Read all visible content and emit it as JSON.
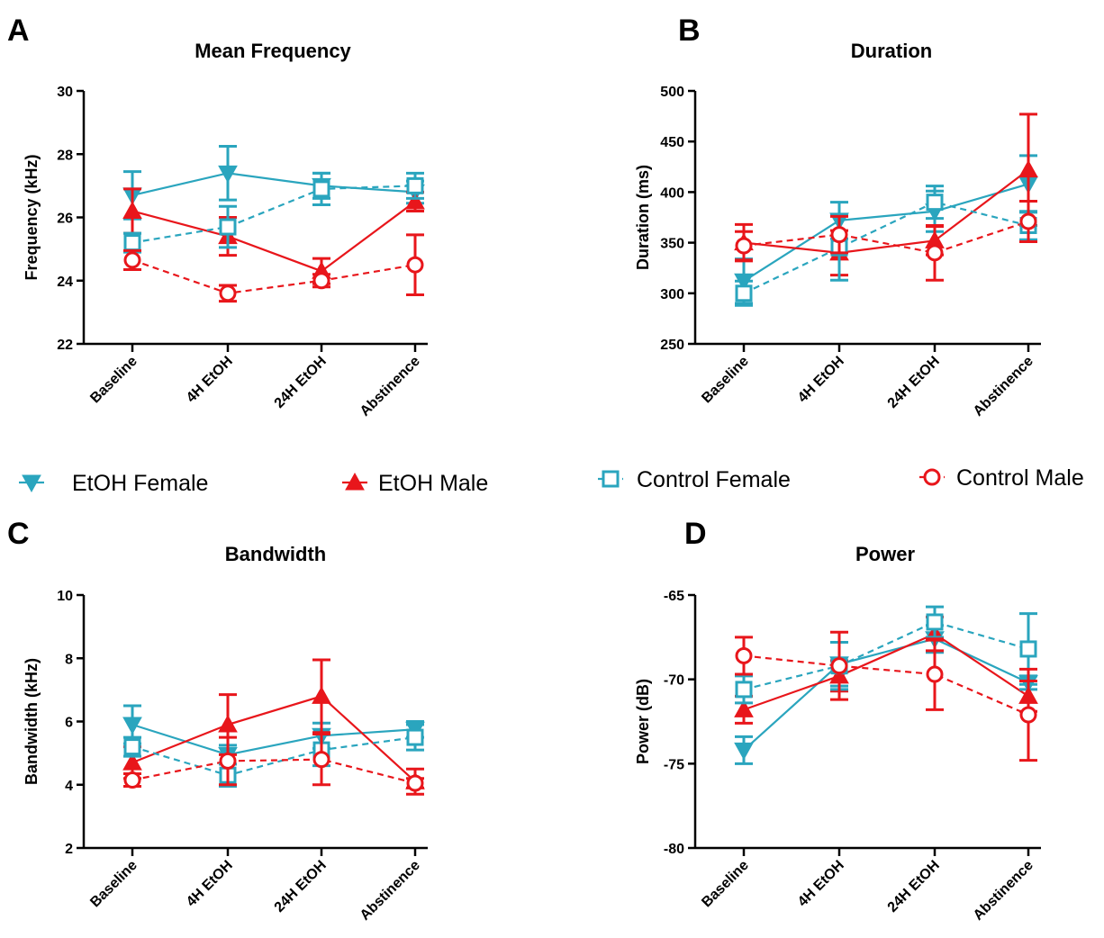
{
  "colors": {
    "female": "#2aa5be",
    "male": "#e8161b",
    "axis": "#000000"
  },
  "legend": [
    {
      "label": "EtOH Female",
      "series": 0
    },
    {
      "label": "EtOH Male",
      "series": 1
    },
    {
      "label": "Control Female",
      "series": 2
    },
    {
      "label": "Control Male",
      "series": 3
    }
  ],
  "chart_data": [
    {
      "panel": "A",
      "type": "line",
      "title": "Mean Frequency",
      "ylabel": "Frequency (kHz)",
      "xlabel": "",
      "categories": [
        "Baseline",
        "4H EtOH",
        "24H EtOH",
        "Abstinence"
      ],
      "ylim": [
        22,
        30
      ],
      "yticks": [
        22,
        24,
        26,
        28,
        30
      ],
      "grid": false,
      "series": [
        {
          "name": "EtOH Female",
          "marker": "triangle-down",
          "fill": "solid",
          "dash": "solid",
          "color": "#2aa5be",
          "values": [
            26.7,
            27.4,
            27.0,
            26.8
          ],
          "errors": [
            0.75,
            0.85,
            0.4,
            0.35
          ]
        },
        {
          "name": "EtOH Male",
          "marker": "triangle-up",
          "fill": "solid",
          "dash": "solid",
          "color": "#e8161b",
          "values": [
            26.2,
            25.4,
            24.3,
            26.5
          ],
          "errors": [
            0.7,
            0.6,
            0.4,
            0.3
          ]
        },
        {
          "name": "Control Female",
          "marker": "square",
          "fill": "open",
          "dash": "dashed",
          "color": "#2aa5be",
          "values": [
            25.2,
            25.7,
            26.9,
            27.0
          ],
          "errors": [
            0.3,
            0.65,
            0.5,
            0.4
          ]
        },
        {
          "name": "Control Male",
          "marker": "circle",
          "fill": "open",
          "dash": "dashed",
          "color": "#e8161b",
          "values": [
            24.65,
            23.6,
            24.0,
            24.5
          ],
          "errors": [
            0.3,
            0.25,
            0.2,
            0.95
          ]
        }
      ]
    },
    {
      "panel": "B",
      "type": "line",
      "title": "Duration",
      "ylabel": "Duration (ms)",
      "xlabel": "",
      "categories": [
        "Baseline",
        "4H EtOH",
        "24H EtOH",
        "Abstinence"
      ],
      "ylim": [
        250,
        500
      ],
      "yticks": [
        250,
        300,
        350,
        400,
        450,
        500
      ],
      "grid": false,
      "series": [
        {
          "name": "EtOH Female",
          "marker": "triangle-down",
          "fill": "solid",
          "dash": "solid",
          "color": "#2aa5be",
          "values": [
            312,
            372,
            381,
            408
          ],
          "errors": [
            22,
            18,
            20,
            28
          ]
        },
        {
          "name": "EtOH Male",
          "marker": "triangle-up",
          "fill": "solid",
          "dash": "solid",
          "color": "#e8161b",
          "values": [
            350,
            340,
            352,
            422
          ],
          "errors": [
            18,
            22,
            14,
            55
          ]
        },
        {
          "name": "Control Female",
          "marker": "square",
          "fill": "open",
          "dash": "dashed",
          "color": "#2aa5be",
          "values": [
            300,
            345,
            390,
            367
          ],
          "errors": [
            12,
            32,
            16,
            14
          ]
        },
        {
          "name": "Control Male",
          "marker": "circle",
          "fill": "open",
          "dash": "dashed",
          "color": "#e8161b",
          "values": [
            347,
            358,
            340,
            371
          ],
          "errors": [
            14,
            18,
            27,
            20
          ]
        }
      ]
    },
    {
      "panel": "C",
      "type": "line",
      "title": "Bandwidth",
      "ylabel": "Bandwidth (kHz)",
      "xlabel": "",
      "categories": [
        "Baseline",
        "4H EtOH",
        "24H EtOH",
        "Abstinence"
      ],
      "ylim": [
        2,
        10
      ],
      "yticks": [
        2,
        4,
        6,
        8,
        10
      ],
      "grid": false,
      "series": [
        {
          "name": "EtOH Female",
          "marker": "triangle-down",
          "fill": "solid",
          "dash": "solid",
          "color": "#2aa5be",
          "values": [
            5.9,
            4.95,
            5.55,
            5.75
          ],
          "errors": [
            0.6,
            0.3,
            0.4,
            0.25
          ]
        },
        {
          "name": "EtOH Male",
          "marker": "triangle-up",
          "fill": "solid",
          "dash": "solid",
          "color": "#e8161b",
          "values": [
            4.7,
            5.9,
            6.8,
            4.1
          ],
          "errors": [
            0.5,
            0.95,
            1.15,
            0.4
          ]
        },
        {
          "name": "Control Female",
          "marker": "square",
          "fill": "open",
          "dash": "dashed",
          "color": "#2aa5be",
          "values": [
            5.2,
            4.3,
            5.1,
            5.5
          ],
          "errors": [
            0.3,
            0.35,
            0.5,
            0.4
          ]
        },
        {
          "name": "Control Male",
          "marker": "circle",
          "fill": "open",
          "dash": "dashed",
          "color": "#e8161b",
          "values": [
            4.15,
            4.75,
            4.8,
            4.05
          ],
          "errors": [
            0.2,
            0.75,
            0.8,
            0.15
          ]
        }
      ]
    },
    {
      "panel": "D",
      "type": "line",
      "title": "Power",
      "ylabel": "Power (dB)",
      "xlabel": "",
      "categories": [
        "Baseline",
        "4H EtOH",
        "24H EtOH",
        "Abstinence"
      ],
      "ylim": [
        -80,
        -65
      ],
      "yticks": [
        -80,
        -75,
        -70,
        -65
      ],
      "grid": false,
      "series": [
        {
          "name": "EtOH Female",
          "marker": "triangle-down",
          "fill": "solid",
          "dash": "solid",
          "color": "#2aa5be",
          "values": [
            -74.2,
            -69.1,
            -67.6,
            -70.2
          ],
          "errors": [
            0.8,
            1.3,
            0.8,
            0.4
          ]
        },
        {
          "name": "EtOH Male",
          "marker": "triangle-up",
          "fill": "solid",
          "dash": "solid",
          "color": "#e8161b",
          "values": [
            -71.8,
            -69.8,
            -67.3,
            -71.0
          ],
          "errors": [
            0.8,
            0.9,
            1.0,
            0.9
          ]
        },
        {
          "name": "Control Female",
          "marker": "square",
          "fill": "open",
          "dash": "dashed",
          "color": "#2aa5be",
          "values": [
            -70.6,
            -69.2,
            -66.6,
            -68.2
          ],
          "errors": [
            0.8,
            1.4,
            0.9,
            2.1
          ]
        },
        {
          "name": "Control Male",
          "marker": "circle",
          "fill": "open",
          "dash": "dashed",
          "color": "#e8161b",
          "values": [
            -68.6,
            -69.2,
            -69.7,
            -72.1
          ],
          "errors": [
            1.1,
            2.0,
            2.1,
            2.7
          ]
        }
      ]
    }
  ]
}
